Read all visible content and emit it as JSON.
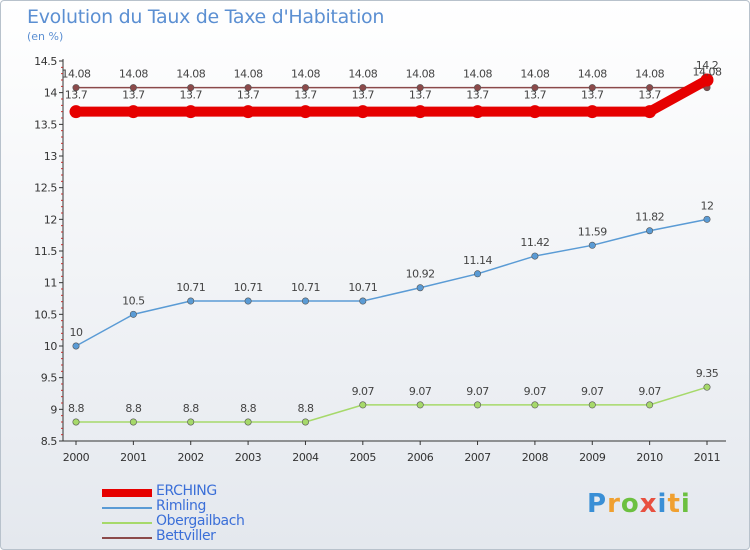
{
  "title": "Evolution du Taux de Taxe d'Habitation",
  "subtitle": "(en %)",
  "logo": {
    "letters": [
      "P",
      "r",
      "o",
      "x",
      "i",
      "t",
      "i"
    ],
    "colors": [
      "#3a8fd6",
      "#f0a030",
      "#6cc040",
      "#e85040",
      "#3a8fd6",
      "#f0a030",
      "#6cc040"
    ]
  },
  "chart_data": {
    "type": "line",
    "title": "Evolution du Taux de Taxe d'Habitation",
    "ylabel": "(en %)",
    "xlabel": "",
    "ylim": [
      8.5,
      14.5
    ],
    "yticks": [
      8.5,
      9,
      9.5,
      10,
      10.5,
      11,
      11.5,
      12,
      12.5,
      13,
      13.5,
      14,
      14.5
    ],
    "categories": [
      "2000",
      "2001",
      "2002",
      "2003",
      "2004",
      "2005",
      "2006",
      "2007",
      "2008",
      "2009",
      "2010",
      "2011"
    ],
    "series": [
      {
        "name": "ERCHING",
        "color": "#e60000",
        "width": 10,
        "values": [
          13.7,
          13.7,
          13.7,
          13.7,
          13.7,
          13.7,
          13.7,
          13.7,
          13.7,
          13.7,
          13.7,
          14.2
        ],
        "labels": [
          "13.7",
          "13.7",
          "13.7",
          "13.7",
          "13.7",
          "13.7",
          "13.7",
          "13.7",
          "13.7",
          "13.7",
          "13.7",
          "14.2"
        ]
      },
      {
        "name": "Rimling",
        "color": "#5a9bd5",
        "width": 1.5,
        "values": [
          10,
          10.5,
          10.71,
          10.71,
          10.71,
          10.71,
          10.92,
          11.14,
          11.42,
          11.59,
          11.82,
          12
        ],
        "labels": [
          "10",
          "10.5",
          "10.71",
          "10.71",
          "10.71",
          "10.71",
          "10.92",
          "11.14",
          "11.42",
          "11.59",
          "11.82",
          "12"
        ]
      },
      {
        "name": "Obergailbach",
        "color": "#a6d96a",
        "width": 1.5,
        "values": [
          8.8,
          8.8,
          8.8,
          8.8,
          8.8,
          9.07,
          9.07,
          9.07,
          9.07,
          9.07,
          9.07,
          9.35
        ],
        "labels": [
          "8.8",
          "8.8",
          "8.8",
          "8.8",
          "8.8",
          "9.07",
          "9.07",
          "9.07",
          "9.07",
          "9.07",
          "9.07",
          "9.35"
        ]
      },
      {
        "name": "Bettviller",
        "color": "#8b4a4a",
        "width": 1.5,
        "values": [
          14.08,
          14.08,
          14.08,
          14.08,
          14.08,
          14.08,
          14.08,
          14.08,
          14.08,
          14.08,
          14.08,
          14.08
        ],
        "labels": [
          "14.08",
          "14.08",
          "14.08",
          "14.08",
          "14.08",
          "14.08",
          "14.08",
          "14.08",
          "14.08",
          "14.08",
          "14.08",
          "14.08"
        ]
      }
    ],
    "legend": [
      "ERCHING",
      "Rimling",
      "Obergailbach",
      "Bettviller"
    ]
  }
}
